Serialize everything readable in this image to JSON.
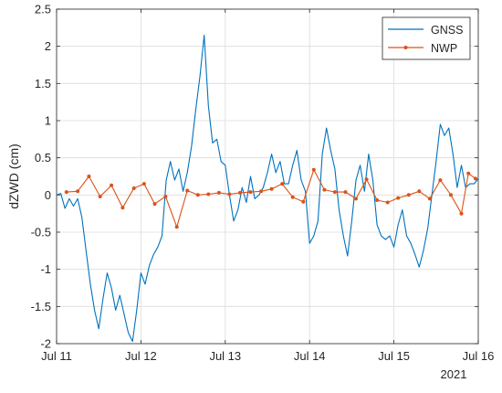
{
  "chart_data": {
    "type": "line",
    "title": "",
    "xlabel": "",
    "ylabel": "dZWD (cm)",
    "year_label": "2021",
    "x_range": [
      "2021-07-11T00:00",
      "2021-07-16T00:00"
    ],
    "x_ticks": [
      {
        "date": "2021-07-11T00:00",
        "label": "Jul 11"
      },
      {
        "date": "2021-07-12T00:00",
        "label": "Jul 12"
      },
      {
        "date": "2021-07-13T00:00",
        "label": "Jul 13"
      },
      {
        "date": "2021-07-14T00:00",
        "label": "Jul 14"
      },
      {
        "date": "2021-07-15T00:00",
        "label": "Jul 15"
      },
      {
        "date": "2021-07-16T00:00",
        "label": "Jul 16"
      }
    ],
    "ylim": [
      -2,
      2.5
    ],
    "y_ticks": [
      -2,
      -1.5,
      -1,
      -0.5,
      0,
      0.5,
      1,
      1.5,
      2,
      2.5
    ],
    "y_tick_labels": [
      "-2",
      "-1.5",
      "-1",
      "-0.5",
      "0",
      "0.5",
      "1",
      "1.5",
      "2",
      "2.5"
    ],
    "grid": true,
    "legend_position": "top-right",
    "series": [
      {
        "name": "GNSS",
        "color": "#0072BD",
        "marker": "none",
        "points": [
          [
            "2021-07-11T00:00",
            0.0
          ],
          [
            "2021-07-11T01:12",
            0.02
          ],
          [
            "2021-07-11T02:24",
            -0.18
          ],
          [
            "2021-07-11T03:36",
            -0.05
          ],
          [
            "2021-07-11T04:48",
            -0.15
          ],
          [
            "2021-07-11T06:00",
            -0.05
          ],
          [
            "2021-07-11T07:12",
            -0.3
          ],
          [
            "2021-07-11T08:24",
            -0.75
          ],
          [
            "2021-07-11T09:36",
            -1.2
          ],
          [
            "2021-07-11T10:48",
            -1.55
          ],
          [
            "2021-07-11T12:00",
            -1.8
          ],
          [
            "2021-07-11T13:12",
            -1.4
          ],
          [
            "2021-07-11T14:24",
            -1.05
          ],
          [
            "2021-07-11T15:36",
            -1.25
          ],
          [
            "2021-07-11T16:48",
            -1.55
          ],
          [
            "2021-07-11T18:00",
            -1.35
          ],
          [
            "2021-07-11T19:12",
            -1.6
          ],
          [
            "2021-07-11T20:24",
            -1.85
          ],
          [
            "2021-07-11T21:36",
            -1.97
          ],
          [
            "2021-07-11T22:48",
            -1.55
          ],
          [
            "2021-07-12T00:00",
            -1.05
          ],
          [
            "2021-07-12T01:12",
            -1.2
          ],
          [
            "2021-07-12T02:24",
            -0.95
          ],
          [
            "2021-07-12T03:36",
            -0.8
          ],
          [
            "2021-07-12T04:48",
            -0.7
          ],
          [
            "2021-07-12T06:00",
            -0.55
          ],
          [
            "2021-07-12T07:12",
            0.2
          ],
          [
            "2021-07-12T08:24",
            0.45
          ],
          [
            "2021-07-12T09:36",
            0.2
          ],
          [
            "2021-07-12T10:48",
            0.35
          ],
          [
            "2021-07-12T12:00",
            0.05
          ],
          [
            "2021-07-12T13:12",
            0.3
          ],
          [
            "2021-07-12T14:24",
            0.65
          ],
          [
            "2021-07-12T15:36",
            1.15
          ],
          [
            "2021-07-12T16:48",
            1.6
          ],
          [
            "2021-07-12T18:00",
            2.15
          ],
          [
            "2021-07-12T19:12",
            1.2
          ],
          [
            "2021-07-12T20:24",
            0.7
          ],
          [
            "2021-07-12T21:36",
            0.75
          ],
          [
            "2021-07-12T22:48",
            0.45
          ],
          [
            "2021-07-13T00:00",
            0.4
          ],
          [
            "2021-07-13T01:12",
            0.0
          ],
          [
            "2021-07-13T02:24",
            -0.35
          ],
          [
            "2021-07-13T03:36",
            -0.2
          ],
          [
            "2021-07-13T04:48",
            0.1
          ],
          [
            "2021-07-13T06:00",
            -0.1
          ],
          [
            "2021-07-13T07:12",
            0.25
          ],
          [
            "2021-07-13T08:24",
            -0.05
          ],
          [
            "2021-07-13T09:36",
            0.0
          ],
          [
            "2021-07-13T10:48",
            0.1
          ],
          [
            "2021-07-13T12:00",
            0.3
          ],
          [
            "2021-07-13T13:12",
            0.55
          ],
          [
            "2021-07-13T14:24",
            0.3
          ],
          [
            "2021-07-13T15:36",
            0.45
          ],
          [
            "2021-07-13T16:48",
            0.15
          ],
          [
            "2021-07-13T18:00",
            0.15
          ],
          [
            "2021-07-13T19:12",
            0.4
          ],
          [
            "2021-07-13T20:24",
            0.6
          ],
          [
            "2021-07-13T21:36",
            0.2
          ],
          [
            "2021-07-13T22:48",
            0.05
          ],
          [
            "2021-07-14T00:00",
            -0.65
          ],
          [
            "2021-07-14T01:12",
            -0.55
          ],
          [
            "2021-07-14T02:24",
            -0.35
          ],
          [
            "2021-07-14T03:36",
            0.55
          ],
          [
            "2021-07-14T04:48",
            0.9
          ],
          [
            "2021-07-14T06:00",
            0.6
          ],
          [
            "2021-07-14T07:12",
            0.35
          ],
          [
            "2021-07-14T08:24",
            -0.2
          ],
          [
            "2021-07-14T09:36",
            -0.55
          ],
          [
            "2021-07-14T10:48",
            -0.82
          ],
          [
            "2021-07-14T12:00",
            -0.35
          ],
          [
            "2021-07-14T13:12",
            0.2
          ],
          [
            "2021-07-14T14:24",
            0.4
          ],
          [
            "2021-07-14T15:36",
            0.05
          ],
          [
            "2021-07-14T16:48",
            0.55
          ],
          [
            "2021-07-14T18:00",
            0.2
          ],
          [
            "2021-07-14T19:12",
            -0.4
          ],
          [
            "2021-07-14T20:24",
            -0.55
          ],
          [
            "2021-07-14T21:36",
            -0.6
          ],
          [
            "2021-07-14T22:48",
            -0.55
          ],
          [
            "2021-07-15T00:00",
            -0.7
          ],
          [
            "2021-07-15T01:12",
            -0.4
          ],
          [
            "2021-07-15T02:24",
            -0.2
          ],
          [
            "2021-07-15T03:36",
            -0.55
          ],
          [
            "2021-07-15T04:48",
            -0.65
          ],
          [
            "2021-07-15T06:00",
            -0.8
          ],
          [
            "2021-07-15T07:12",
            -0.97
          ],
          [
            "2021-07-15T08:24",
            -0.75
          ],
          [
            "2021-07-15T09:36",
            -0.45
          ],
          [
            "2021-07-15T10:48",
            0.0
          ],
          [
            "2021-07-15T12:00",
            0.45
          ],
          [
            "2021-07-15T13:12",
            0.95
          ],
          [
            "2021-07-15T14:24",
            0.8
          ],
          [
            "2021-07-15T15:36",
            0.9
          ],
          [
            "2021-07-15T16:48",
            0.55
          ],
          [
            "2021-07-15T18:00",
            0.1
          ],
          [
            "2021-07-15T19:12",
            0.4
          ],
          [
            "2021-07-15T20:24",
            0.1
          ],
          [
            "2021-07-15T21:36",
            0.15
          ],
          [
            "2021-07-15T22:48",
            0.15
          ],
          [
            "2021-07-16T00:00",
            0.22
          ]
        ]
      },
      {
        "name": "NWP",
        "color": "#D95319",
        "marker": "point",
        "points": [
          [
            "2021-07-11T02:48",
            0.04
          ],
          [
            "2021-07-11T06:00",
            0.05
          ],
          [
            "2021-07-11T09:12",
            0.25
          ],
          [
            "2021-07-11T12:24",
            -0.02
          ],
          [
            "2021-07-11T15:36",
            0.13
          ],
          [
            "2021-07-11T18:48",
            -0.17
          ],
          [
            "2021-07-11T22:00",
            0.09
          ],
          [
            "2021-07-12T00:55",
            0.15
          ],
          [
            "2021-07-12T03:55",
            -0.12
          ],
          [
            "2021-07-12T07:00",
            -0.02
          ],
          [
            "2021-07-12T10:12",
            -0.43
          ],
          [
            "2021-07-12T13:12",
            0.06
          ],
          [
            "2021-07-12T16:12",
            0.0
          ],
          [
            "2021-07-12T19:12",
            0.01
          ],
          [
            "2021-07-12T22:12",
            0.03
          ],
          [
            "2021-07-13T01:12",
            0.01
          ],
          [
            "2021-07-13T04:12",
            0.03
          ],
          [
            "2021-07-13T07:12",
            0.04
          ],
          [
            "2021-07-13T10:12",
            0.05
          ],
          [
            "2021-07-13T13:12",
            0.08
          ],
          [
            "2021-07-13T16:12",
            0.15
          ],
          [
            "2021-07-13T19:12",
            -0.03
          ],
          [
            "2021-07-13T22:12",
            -0.09
          ],
          [
            "2021-07-14T01:12",
            0.34
          ],
          [
            "2021-07-14T04:12",
            0.07
          ],
          [
            "2021-07-14T07:12",
            0.04
          ],
          [
            "2021-07-14T10:12",
            0.04
          ],
          [
            "2021-07-14T13:12",
            -0.05
          ],
          [
            "2021-07-14T16:12",
            0.21
          ],
          [
            "2021-07-14T19:12",
            -0.07
          ],
          [
            "2021-07-14T22:12",
            -0.1
          ],
          [
            "2021-07-15T01:12",
            -0.04
          ],
          [
            "2021-07-15T04:12",
            0.0
          ],
          [
            "2021-07-15T07:12",
            0.05
          ],
          [
            "2021-07-15T10:12",
            -0.05
          ],
          [
            "2021-07-15T13:12",
            0.2
          ],
          [
            "2021-07-15T16:12",
            0.0
          ],
          [
            "2021-07-15T19:12",
            -0.25
          ],
          [
            "2021-07-15T21:12",
            0.29
          ],
          [
            "2021-07-15T23:12",
            0.22
          ]
        ]
      }
    ]
  }
}
